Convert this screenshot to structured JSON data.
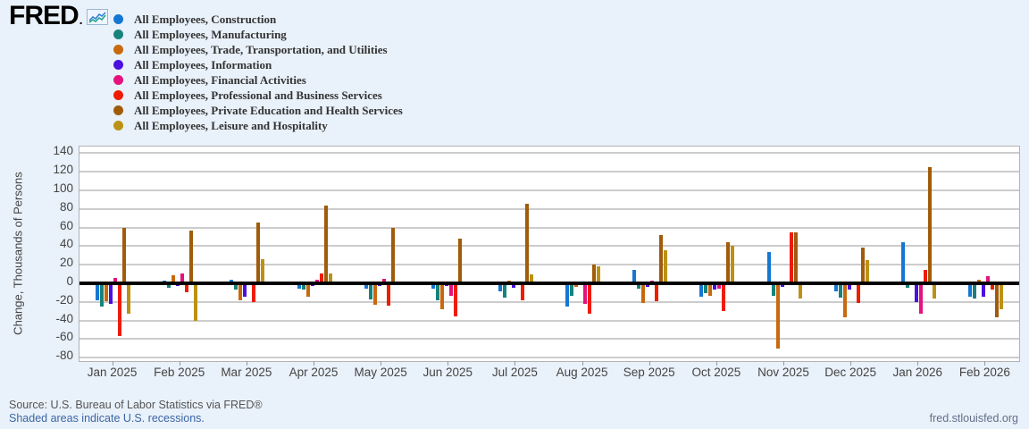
{
  "header": {
    "logo_text": "FRED",
    "logo_dot": "."
  },
  "legend": {
    "items": [
      {
        "label": "All Employees, Construction",
        "color": "#1577d2"
      },
      {
        "label": "All Employees, Manufacturing",
        "color": "#16837c"
      },
      {
        "label": "All Employees, Trade, Transportation, and Utilities",
        "color": "#c8690e"
      },
      {
        "label": "All Employees, Information",
        "color": "#4b10e0"
      },
      {
        "label": "All Employees, Financial Activities",
        "color": "#e5127d"
      },
      {
        "label": "All Employees, Professional and Business Services",
        "color": "#ef1c00"
      },
      {
        "label": "All Employees, Private Education and Health Services",
        "color": "#a05b0b"
      },
      {
        "label": "All Employees, Leisure and Hospitality",
        "color": "#bc9214"
      }
    ]
  },
  "chart_data": {
    "type": "bar",
    "title": "",
    "xlabel": "",
    "ylabel": "Change, Thousands of Persons",
    "ylim": [
      -80,
      140
    ],
    "ytick_step": 20,
    "grid": true,
    "zero_line": true,
    "legend_position": "top-left",
    "categories": [
      "Jan 2025",
      "Feb 2025",
      "Mar 2025",
      "Apr 2025",
      "May 2025",
      "Jun 2025",
      "Jul 2025",
      "Aug 2025",
      "Sep 2025",
      "Oct 2025",
      "Nov 2025",
      "Dec 2025",
      "Jan 2026",
      "Feb 2026"
    ],
    "series": [
      {
        "name": "All Employees, Construction",
        "color": "#1577d2",
        "values": [
          -18,
          3,
          4,
          -6,
          -6,
          -6,
          -9,
          -25,
          14,
          -14,
          34,
          -9,
          44,
          -14
        ]
      },
      {
        "name": "All Employees, Manufacturing",
        "color": "#16837c",
        "values": [
          -25,
          -5,
          -7,
          -7,
          -17,
          -18,
          -15,
          -13,
          -6,
          -11,
          -13,
          -15,
          -5,
          -16
        ]
      },
      {
        "name": "All Employees, Trade, Transportation, and Utilities",
        "color": "#c8690e",
        "values": [
          -19,
          9,
          -18,
          -14,
          -23,
          -28,
          3,
          -4,
          -21,
          -13,
          -70,
          -37,
          -2,
          4
        ]
      },
      {
        "name": "All Employees, Information",
        "color": "#4b10e0",
        "values": [
          -22,
          -3,
          -14,
          -3,
          -3,
          -3,
          -5,
          -2,
          -4,
          -7,
          -4,
          -7,
          -20,
          -14
        ]
      },
      {
        "name": "All Employees, Financial Activities",
        "color": "#e5127d",
        "values": [
          6,
          11,
          -1,
          4,
          5,
          -13,
          -1,
          -22,
          3,
          -6,
          -1,
          -1,
          -33,
          8
        ]
      },
      {
        "name": "All Employees, Professional and Business Services",
        "color": "#ef1c00",
        "values": [
          -57,
          -10,
          -20,
          11,
          -24,
          -36,
          -18,
          -33,
          -19,
          -30,
          55,
          -21,
          14,
          -7
        ]
      },
      {
        "name": "All Employees, Private Education and Health Services",
        "color": "#a05b0b",
        "values": [
          60,
          57,
          65,
          84,
          60,
          48,
          86,
          20,
          52,
          44,
          55,
          38,
          125,
          -37
        ]
      },
      {
        "name": "All Employees, Leisure and Hospitality",
        "color": "#bc9214",
        "values": [
          -33,
          -40,
          26,
          11,
          2,
          -2,
          10,
          18,
          36,
          40,
          -16,
          25,
          -16,
          -28
        ]
      }
    ]
  },
  "footer": {
    "source": "Source: U.S. Bureau of Labor Statistics via FRED®",
    "recession_note": "Shaded areas indicate U.S. recessions.",
    "site": "fred.stlouisfed.org"
  }
}
